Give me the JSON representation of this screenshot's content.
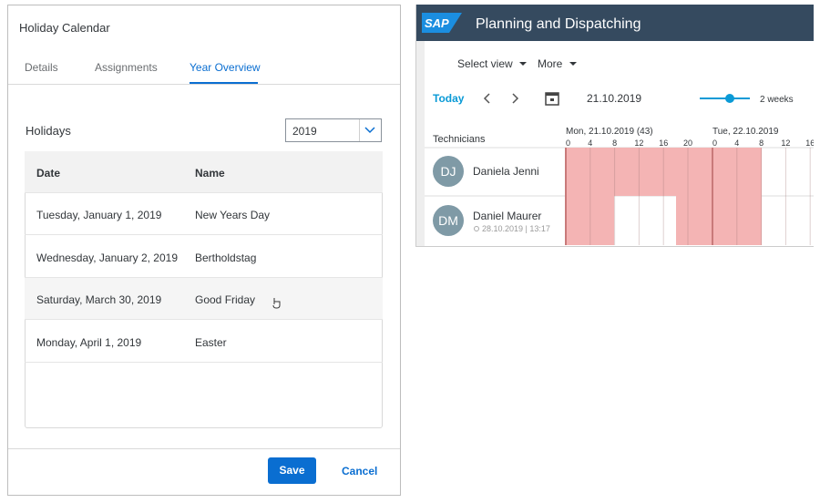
{
  "dialog": {
    "title": "Holiday Calendar",
    "tabs": [
      "Details",
      "Assignments",
      "Year Overview"
    ],
    "section_label": "Holidays",
    "year": "2019",
    "table": {
      "columns": [
        "Date",
        "Name"
      ],
      "rows": [
        [
          "Tuesday, January 1, 2019",
          "New Years Day"
        ],
        [
          "Wednesday, January 2, 2019",
          "Bertholdstag"
        ],
        [
          "Saturday, March 30, 2019",
          "Good Friday"
        ],
        [
          "Monday, April 1, 2019",
          "Easter"
        ]
      ]
    },
    "buttons": [
      "Save",
      "Cancel"
    ]
  },
  "planner": {
    "brand": "SAP",
    "title": "Planning and Dispatching",
    "toolbar": [
      "Select view",
      "More"
    ],
    "today": "Today",
    "date": "21.10.2019",
    "zoom": "2 weeks",
    "column_label": "Technicians",
    "days": [
      "Mon, 21.10.2019 (43)",
      "Tue, 22.10.2019"
    ],
    "hours": [
      [
        0,
        4,
        8,
        12,
        16,
        20
      ],
      [
        0,
        4,
        8,
        12,
        16
      ]
    ],
    "technicians": [
      {
        "initials": "DJ",
        "name": "Daniela Jenni"
      },
      {
        "initials": "DM",
        "name": "Daniel Maurer",
        "note": "28.10.2019 | 13:17"
      }
    ]
  }
}
